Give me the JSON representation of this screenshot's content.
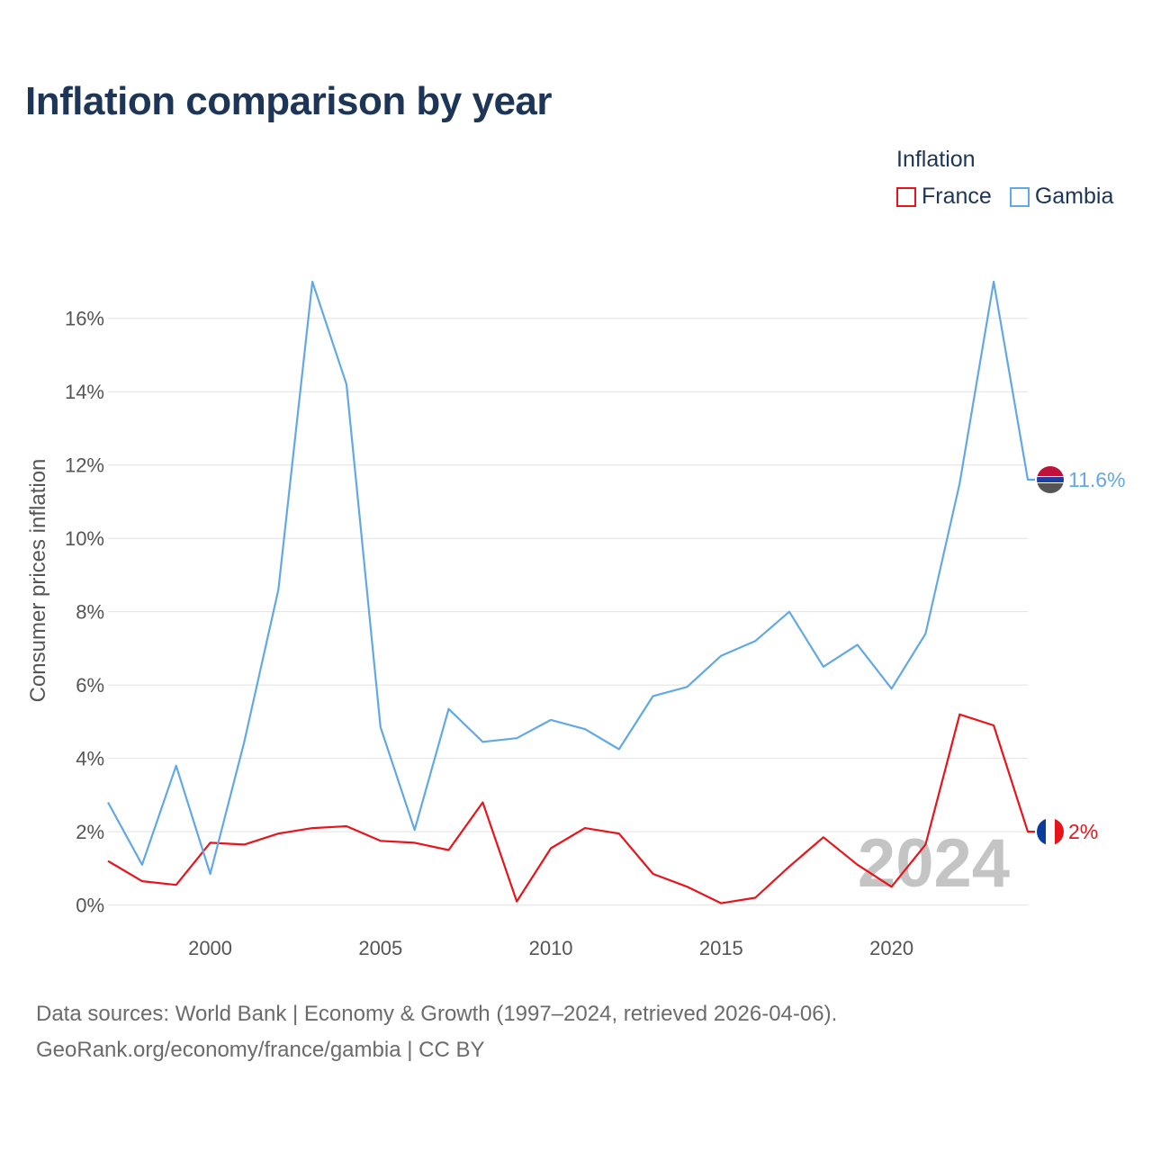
{
  "title": "Inflation comparison by year",
  "legend": {
    "title": "Inflation",
    "items": [
      {
        "name": "France",
        "color": "#e8141c"
      },
      {
        "name": "Gambia",
        "color": "#63a8e6"
      }
    ]
  },
  "footer": {
    "line1": "Data sources: World Bank | Economy & Growth (1997–2024, retrieved 2026-04-06).",
    "line2": "GeoRank.org/economy/france/gambia | CC BY"
  },
  "chart_data": {
    "type": "line",
    "title": "Inflation comparison by year",
    "xlabel": "",
    "ylabel": "Consumer prices inflation",
    "watermark": "2024",
    "x": [
      1997,
      1998,
      1999,
      2000,
      2001,
      2002,
      2003,
      2004,
      2005,
      2006,
      2007,
      2008,
      2009,
      2010,
      2011,
      2012,
      2013,
      2014,
      2015,
      2016,
      2017,
      2018,
      2019,
      2020,
      2021,
      2022,
      2023,
      2024
    ],
    "xlim": [
      1997,
      2024
    ],
    "ylim": [
      -0.5,
      17
    ],
    "x_ticks": [
      2000,
      2005,
      2010,
      2015,
      2020
    ],
    "y_ticks": [
      0,
      2,
      4,
      6,
      8,
      10,
      12,
      14,
      16
    ],
    "y_tick_labels": [
      "0%",
      "2%",
      "4%",
      "6%",
      "8%",
      "10%",
      "12%",
      "14%",
      "16%"
    ],
    "grid": true,
    "series": [
      {
        "name": "France",
        "color": "#e8141c",
        "end_label": "2%",
        "values": [
          1.2,
          0.65,
          0.55,
          1.7,
          1.65,
          1.95,
          2.1,
          2.15,
          1.75,
          1.7,
          1.5,
          2.8,
          0.1,
          1.55,
          2.1,
          1.95,
          0.85,
          0.5,
          0.05,
          0.2,
          1.05,
          1.85,
          1.1,
          0.5,
          1.65,
          5.2,
          4.9,
          2.0
        ]
      },
      {
        "name": "Gambia",
        "color": "#63a8e6",
        "end_label": "11.6%",
        "values": [
          2.8,
          1.1,
          3.8,
          0.85,
          4.45,
          8.6,
          17.0,
          14.2,
          4.85,
          2.05,
          5.35,
          4.45,
          4.55,
          5.05,
          4.8,
          4.25,
          5.7,
          5.95,
          6.8,
          7.2,
          8.0,
          6.5,
          7.1,
          5.9,
          7.4,
          11.5,
          17.0,
          11.6
        ]
      }
    ]
  }
}
